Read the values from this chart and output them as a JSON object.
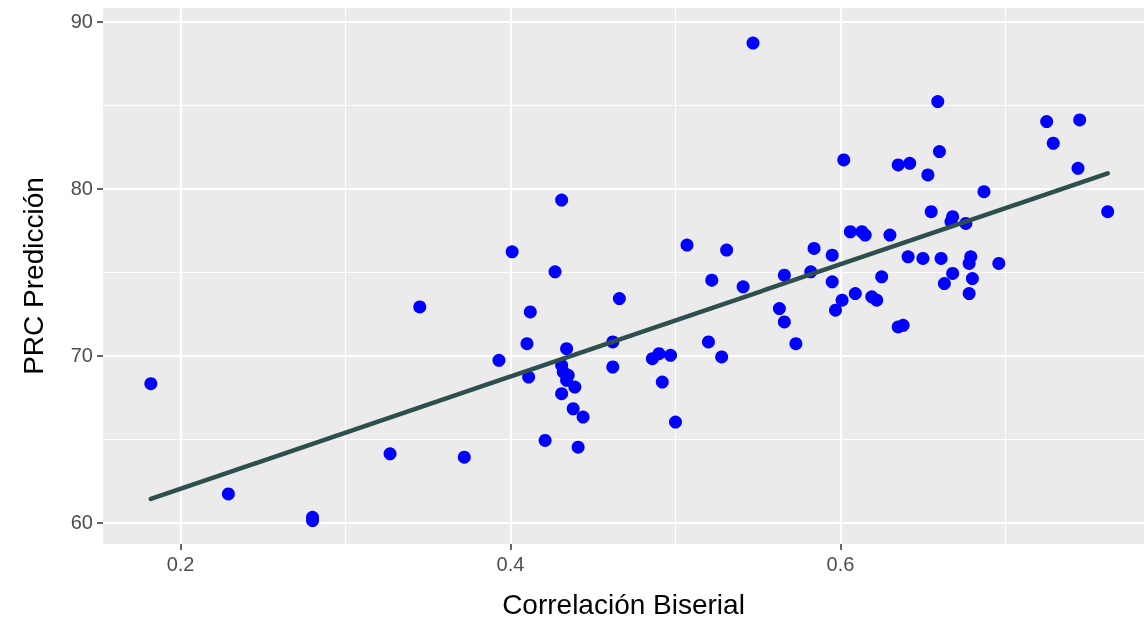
{
  "chart_data": {
    "type": "scatter",
    "xlabel": "Correlación Biserial",
    "ylabel": "PRC Predicción",
    "xlim": [
      0.153,
      0.784
    ],
    "xticks": [
      0.2,
      0.4,
      0.6
    ],
    "ylim": [
      58.7,
      90.8
    ],
    "yticks": [
      60,
      70,
      80,
      90
    ],
    "grid": true,
    "marker": "circle",
    "series": [
      {
        "color": "#0000ff",
        "x": [
          0.182,
          0.229,
          0.28,
          0.28,
          0.327,
          0.345,
          0.372,
          0.393,
          0.401,
          0.41,
          0.411,
          0.412,
          0.421,
          0.427,
          0.431,
          0.431,
          0.431,
          0.432,
          0.434,
          0.434,
          0.435,
          0.438,
          0.439,
          0.441,
          0.444,
          0.462,
          0.462,
          0.466,
          0.486,
          0.49,
          0.492,
          0.497,
          0.5,
          0.507,
          0.52,
          0.522,
          0.528,
          0.531,
          0.541,
          0.547,
          0.563,
          0.566,
          0.566,
          0.573,
          0.582,
          0.584,
          0.595,
          0.595,
          0.597,
          0.601,
          0.602,
          0.606,
          0.609,
          0.613,
          0.615,
          0.619,
          0.622,
          0.625,
          0.63,
          0.635,
          0.635,
          0.638,
          0.641,
          0.642,
          0.65,
          0.653,
          0.655,
          0.659,
          0.66,
          0.661,
          0.663,
          0.667,
          0.668,
          0.668,
          0.676,
          0.678,
          0.678,
          0.679,
          0.68,
          0.687,
          0.696,
          0.725,
          0.729,
          0.744,
          0.745,
          0.762
        ],
        "values": [
          68.3,
          61.7,
          60.3,
          60.1,
          64.1,
          72.9,
          63.9,
          69.7,
          76.2,
          70.7,
          68.7,
          72.6,
          64.9,
          75.0,
          79.3,
          69.4,
          67.7,
          69.0,
          68.5,
          70.4,
          68.8,
          66.8,
          68.1,
          64.5,
          66.3,
          70.8,
          69.3,
          73.4,
          69.8,
          70.1,
          68.4,
          70.0,
          66.0,
          76.6,
          70.8,
          74.5,
          69.9,
          76.3,
          74.1,
          88.7,
          72.8,
          74.8,
          72.0,
          70.7,
          75.0,
          76.4,
          76.0,
          74.4,
          72.7,
          73.3,
          81.7,
          77.4,
          73.7,
          77.4,
          77.2,
          73.5,
          73.3,
          74.7,
          77.2,
          81.4,
          71.7,
          71.8,
          75.9,
          81.5,
          75.8,
          80.8,
          78.6,
          85.2,
          82.2,
          75.8,
          74.3,
          78.0,
          78.3,
          74.9,
          77.9,
          75.5,
          73.7,
          75.9,
          74.6,
          79.8,
          75.5,
          84.0,
          82.7,
          81.2,
          84.1,
          78.6
        ]
      },
      {
        "type": "line",
        "color": "#2f4f4f",
        "marker": "none",
        "x": [
          0.182,
          0.762
        ],
        "values": [
          61.4,
          80.9
        ]
      }
    ]
  }
}
